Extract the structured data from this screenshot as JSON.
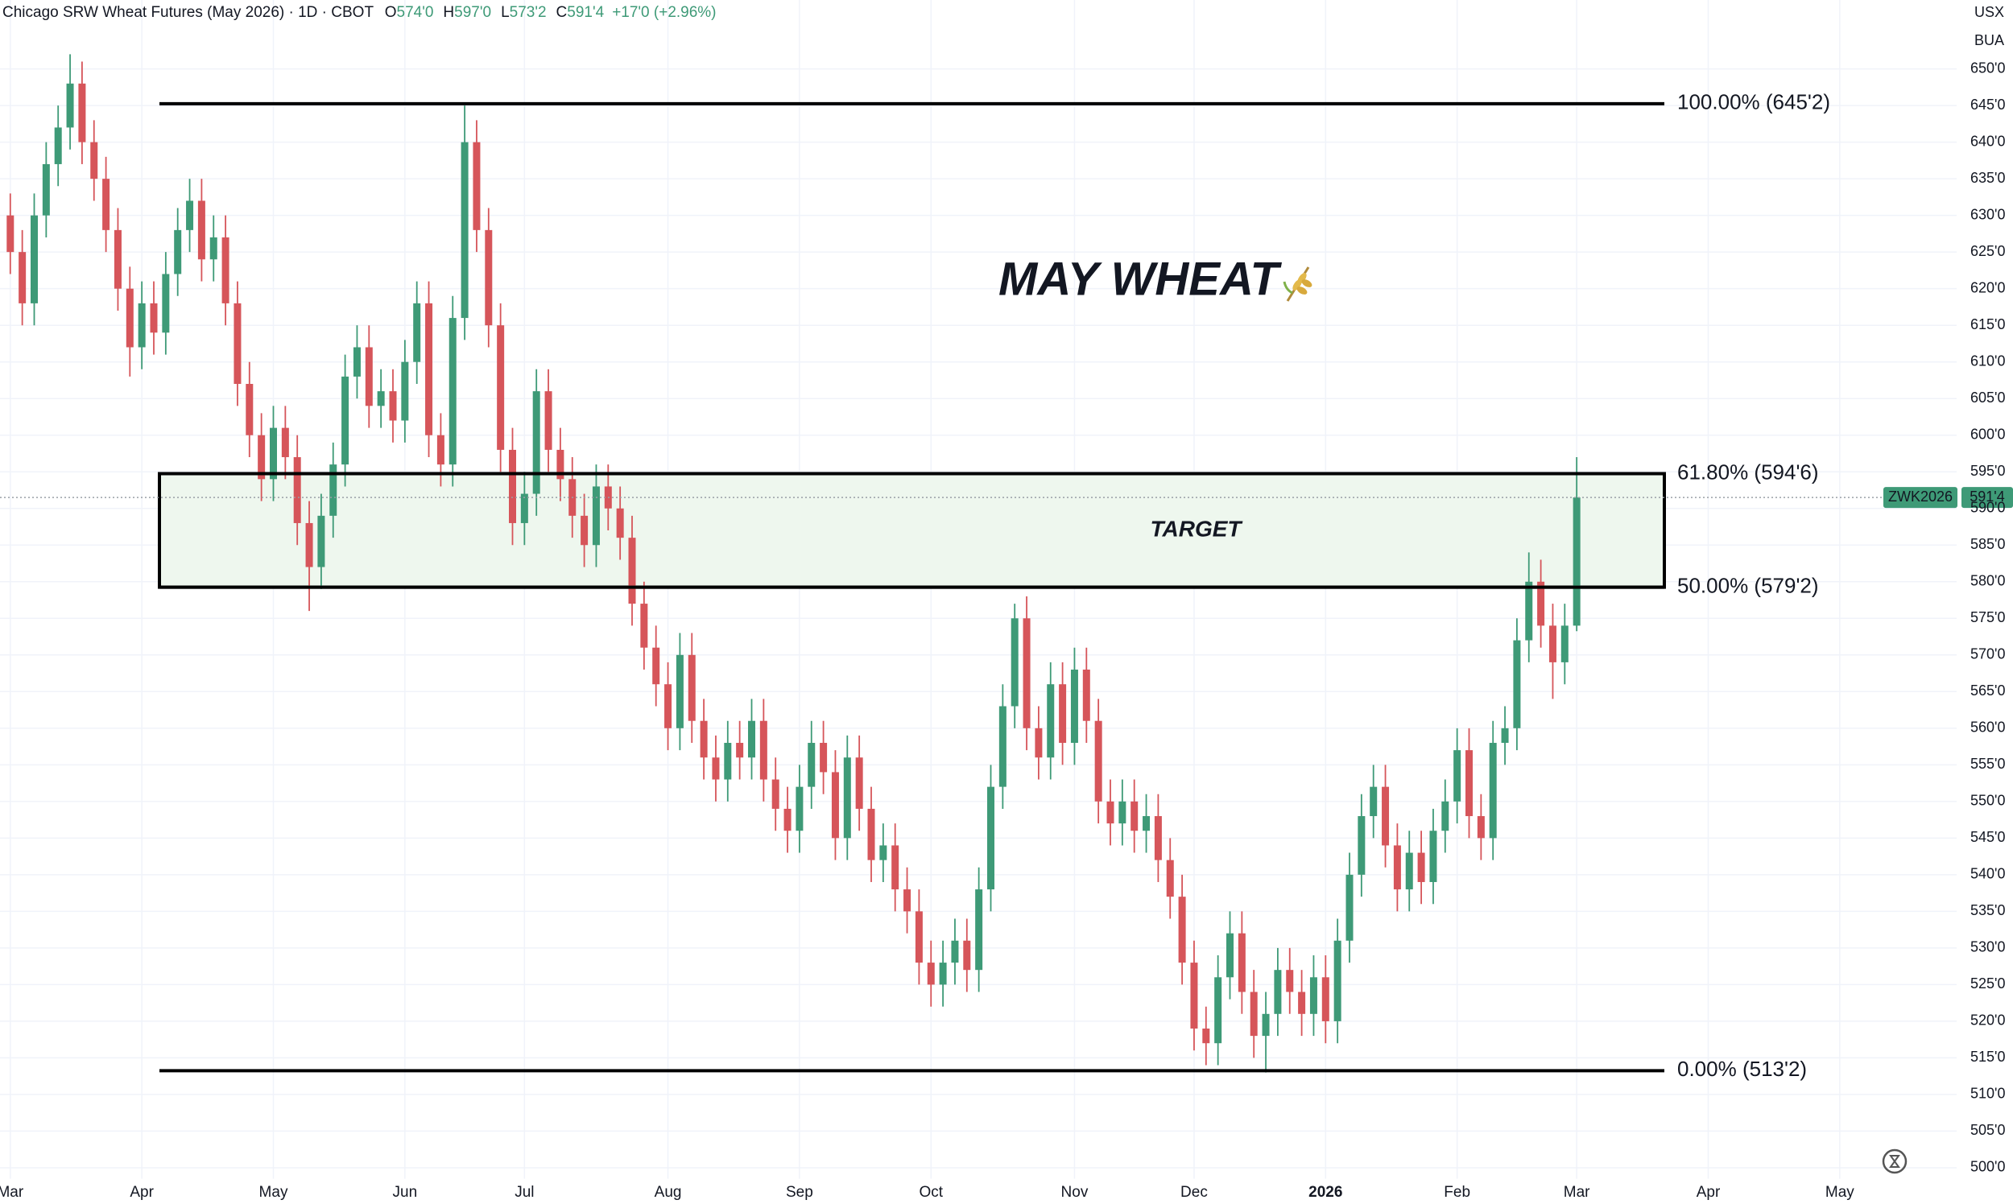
{
  "chart_data": {
    "type": "candlestick",
    "title": "Chicago SRW Wheat Futures (May 2026) · 1D · CBOT",
    "ohlc_legend": [
      {
        "key": "O",
        "value": "574'0"
      },
      {
        "key": "H",
        "value": "597'0"
      },
      {
        "key": "L",
        "value": "573'2"
      },
      {
        "key": "C",
        "value": "591'4"
      }
    ],
    "change": "+17'0 (+2.96%)",
    "annotation": "MAY WHEAT",
    "zone_label": "TARGET",
    "units": [
      "USX",
      "BUA"
    ],
    "colors": {
      "up": "#3e9a77",
      "down": "#d6555a",
      "zone": "#eef7ee",
      "zone_text": "#5aa55a"
    },
    "grid": true,
    "levels": [
      {
        "value": 645.25,
        "label": "100.00% (645'2)"
      },
      {
        "value": 594.75,
        "label": "61.80% (594'6)"
      },
      {
        "value": 579.25,
        "label": "50.00% (579'2)"
      },
      {
        "value": 513.25,
        "label": "0.00% (513'2)"
      }
    ],
    "last_price": {
      "symbol": "ZWK2026",
      "value": 591.5,
      "label": "591'4"
    },
    "ylim": [
      498.5,
      656
    ],
    "yticks": [
      {
        "value": 500,
        "label": "500'0"
      },
      {
        "value": 505,
        "label": "505'0"
      },
      {
        "value": 510,
        "label": "510'0"
      },
      {
        "value": 515,
        "label": "515'0"
      },
      {
        "value": 520,
        "label": "520'0"
      },
      {
        "value": 525,
        "label": "525'0"
      },
      {
        "value": 530,
        "label": "530'0"
      },
      {
        "value": 535,
        "label": "535'0"
      },
      {
        "value": 540,
        "label": "540'0"
      },
      {
        "value": 545,
        "label": "545'0"
      },
      {
        "value": 550,
        "label": "550'0"
      },
      {
        "value": 555,
        "label": "555'0"
      },
      {
        "value": 560,
        "label": "560'0"
      },
      {
        "value": 565,
        "label": "565'0"
      },
      {
        "value": 570,
        "label": "570'0"
      },
      {
        "value": 575,
        "label": "575'0"
      },
      {
        "value": 580,
        "label": "580'0"
      },
      {
        "value": 585,
        "label": "585'0"
      },
      {
        "value": 590,
        "label": "590'0"
      },
      {
        "value": 595,
        "label": "595'0"
      },
      {
        "value": 600,
        "label": "600'0"
      },
      {
        "value": 605,
        "label": "605'0"
      },
      {
        "value": 610,
        "label": "610'0"
      },
      {
        "value": 615,
        "label": "615'0"
      },
      {
        "value": 620,
        "label": "620'0"
      },
      {
        "value": 625,
        "label": "625'0"
      },
      {
        "value": 630,
        "label": "630'0"
      },
      {
        "value": 635,
        "label": "635'0"
      },
      {
        "value": 640,
        "label": "640'0"
      },
      {
        "value": 645,
        "label": "645'0"
      },
      {
        "value": 650,
        "label": "650'0"
      }
    ],
    "categories": [
      "Mar",
      null,
      null,
      null,
      null,
      null,
      null,
      null,
      null,
      null,
      null,
      "Apr",
      null,
      null,
      null,
      null,
      null,
      null,
      null,
      null,
      null,
      null,
      "May",
      null,
      null,
      null,
      null,
      null,
      null,
      null,
      null,
      null,
      null,
      "Jun",
      null,
      null,
      null,
      null,
      null,
      null,
      null,
      null,
      null,
      "Jul",
      null,
      null,
      null,
      null,
      null,
      null,
      null,
      null,
      null,
      null,
      null,
      "Aug",
      null,
      null,
      null,
      null,
      null,
      null,
      null,
      null,
      null,
      null,
      "Sep",
      null,
      null,
      null,
      null,
      null,
      null,
      null,
      null,
      null,
      null,
      "Oct",
      null,
      null,
      null,
      null,
      null,
      null,
      null,
      null,
      null,
      null,
      null,
      "Nov",
      null,
      null,
      null,
      null,
      null,
      null,
      null,
      null,
      null,
      "Dec",
      null,
      null,
      null,
      null,
      null,
      null,
      null,
      null,
      null,
      null,
      "2026",
      null,
      null,
      null,
      null,
      null,
      null,
      null,
      null,
      null,
      null,
      "Feb",
      null,
      null,
      null,
      null,
      null,
      null,
      null,
      null,
      null,
      "Mar",
      null,
      null,
      null,
      null,
      null,
      null,
      null,
      null,
      null,
      null,
      "Apr",
      null,
      null,
      null,
      null,
      null,
      null,
      null,
      null,
      null,
      null,
      "May"
    ],
    "ohlc": [
      [
        630,
        633,
        622,
        625
      ],
      [
        625,
        628,
        615,
        618
      ],
      [
        618,
        633,
        615,
        630
      ],
      [
        630,
        640,
        627,
        637
      ],
      [
        637,
        645,
        634,
        642
      ],
      [
        642,
        652,
        639,
        648
      ],
      [
        648,
        651,
        637,
        640
      ],
      [
        640,
        643,
        632,
        635
      ],
      [
        635,
        638,
        625,
        628
      ],
      [
        628,
        631,
        617,
        620
      ],
      [
        620,
        623,
        608,
        612
      ],
      [
        612,
        621,
        609,
        618
      ],
      [
        618,
        621,
        611,
        614
      ],
      [
        614,
        625,
        611,
        622
      ],
      [
        622,
        631,
        619,
        628
      ],
      [
        628,
        635,
        625,
        632
      ],
      [
        632,
        635,
        621,
        624
      ],
      [
        624,
        630,
        621,
        627
      ],
      [
        627,
        630,
        615,
        618
      ],
      [
        618,
        621,
        604,
        607
      ],
      [
        607,
        610,
        597,
        600
      ],
      [
        600,
        603,
        591,
        594
      ],
      [
        594,
        604,
        591,
        601
      ],
      [
        601,
        604,
        594,
        597
      ],
      [
        597,
        600,
        585,
        588
      ],
      [
        588,
        591,
        576,
        582
      ],
      [
        582,
        592,
        579,
        589
      ],
      [
        589,
        599,
        586,
        596
      ],
      [
        596,
        611,
        593,
        608
      ],
      [
        608,
        615,
        605,
        612
      ],
      [
        612,
        615,
        601,
        604
      ],
      [
        604,
        609,
        601,
        606
      ],
      [
        606,
        609,
        599,
        602
      ],
      [
        602,
        613,
        599,
        610
      ],
      [
        610,
        621,
        607,
        618
      ],
      [
        618,
        621,
        597,
        600
      ],
      [
        600,
        603,
        593,
        596
      ],
      [
        596,
        619,
        593,
        616
      ],
      [
        616,
        645,
        613,
        640
      ],
      [
        640,
        643,
        625,
        628
      ],
      [
        628,
        631,
        612,
        615
      ],
      [
        615,
        618,
        595,
        598
      ],
      [
        598,
        601,
        585,
        588
      ],
      [
        588,
        595,
        585,
        592
      ],
      [
        592,
        609,
        589,
        606
      ],
      [
        606,
        609,
        595,
        598
      ],
      [
        598,
        601,
        591,
        594
      ],
      [
        594,
        597,
        586,
        589
      ],
      [
        589,
        592,
        582,
        585
      ],
      [
        585,
        596,
        582,
        593
      ],
      [
        593,
        596,
        587,
        590
      ],
      [
        590,
        593,
        583,
        586
      ],
      [
        586,
        589,
        574,
        577
      ],
      [
        577,
        580,
        568,
        571
      ],
      [
        571,
        574,
        563,
        566
      ],
      [
        566,
        569,
        557,
        560
      ],
      [
        560,
        573,
        557,
        570
      ],
      [
        570,
        573,
        558,
        561
      ],
      [
        561,
        564,
        553,
        556
      ],
      [
        556,
        559,
        550,
        553
      ],
      [
        553,
        561,
        550,
        558
      ],
      [
        558,
        561,
        553,
        556
      ],
      [
        556,
        564,
        553,
        561
      ],
      [
        561,
        564,
        550,
        553
      ],
      [
        553,
        556,
        546,
        549
      ],
      [
        549,
        552,
        543,
        546
      ],
      [
        546,
        555,
        543,
        552
      ],
      [
        552,
        561,
        549,
        558
      ],
      [
        558,
        561,
        551,
        554
      ],
      [
        554,
        557,
        542,
        545
      ],
      [
        545,
        559,
        542,
        556
      ],
      [
        556,
        559,
        546,
        549
      ],
      [
        549,
        552,
        539,
        542
      ],
      [
        542,
        547,
        539,
        544
      ],
      [
        544,
        547,
        535,
        538
      ],
      [
        538,
        541,
        532,
        535
      ],
      [
        535,
        538,
        525,
        528
      ],
      [
        528,
        531,
        522,
        525
      ],
      [
        525,
        531,
        522,
        528
      ],
      [
        528,
        534,
        525,
        531
      ],
      [
        531,
        534,
        524,
        527
      ],
      [
        527,
        541,
        524,
        538
      ],
      [
        538,
        555,
        535,
        552
      ],
      [
        552,
        566,
        549,
        563
      ],
      [
        563,
        577,
        560,
        575
      ],
      [
        575,
        578,
        557,
        560
      ],
      [
        560,
        563,
        553,
        556
      ],
      [
        556,
        569,
        553,
        566
      ],
      [
        566,
        569,
        555,
        558
      ],
      [
        558,
        571,
        555,
        568
      ],
      [
        568,
        571,
        558,
        561
      ],
      [
        561,
        564,
        547,
        550
      ],
      [
        550,
        553,
        544,
        547
      ],
      [
        547,
        553,
        544,
        550
      ],
      [
        550,
        553,
        543,
        546
      ],
      [
        546,
        551,
        543,
        548
      ],
      [
        548,
        551,
        539,
        542
      ],
      [
        542,
        545,
        534,
        537
      ],
      [
        537,
        540,
        525,
        528
      ],
      [
        528,
        531,
        516,
        519
      ],
      [
        519,
        522,
        514,
        517
      ],
      [
        517,
        529,
        514,
        526
      ],
      [
        526,
        535,
        523,
        532
      ],
      [
        532,
        535,
        521,
        524
      ],
      [
        524,
        527,
        515,
        518
      ],
      [
        518,
        524,
        513,
        521
      ],
      [
        521,
        530,
        518,
        527
      ],
      [
        527,
        530,
        521,
        524
      ],
      [
        524,
        527,
        518,
        521
      ],
      [
        521,
        529,
        518,
        526
      ],
      [
        526,
        529,
        517,
        520
      ],
      [
        520,
        534,
        517,
        531
      ],
      [
        531,
        543,
        528,
        540
      ],
      [
        540,
        551,
        537,
        548
      ],
      [
        548,
        555,
        545,
        552
      ],
      [
        552,
        555,
        541,
        544
      ],
      [
        544,
        547,
        535,
        538
      ],
      [
        538,
        546,
        535,
        543
      ],
      [
        543,
        546,
        536,
        539
      ],
      [
        539,
        549,
        536,
        546
      ],
      [
        546,
        553,
        543,
        550
      ],
      [
        550,
        560,
        547,
        557
      ],
      [
        557,
        560,
        545,
        548
      ],
      [
        548,
        551,
        542,
        545
      ],
      [
        545,
        561,
        542,
        558
      ],
      [
        558,
        563,
        555,
        560
      ],
      [
        560,
        575,
        557,
        572
      ],
      [
        572,
        584,
        569,
        580
      ],
      [
        580,
        583,
        571,
        574
      ],
      [
        574,
        577,
        564,
        569
      ],
      [
        569,
        577,
        566,
        574
      ],
      [
        574,
        597,
        573.25,
        591.5
      ]
    ]
  }
}
